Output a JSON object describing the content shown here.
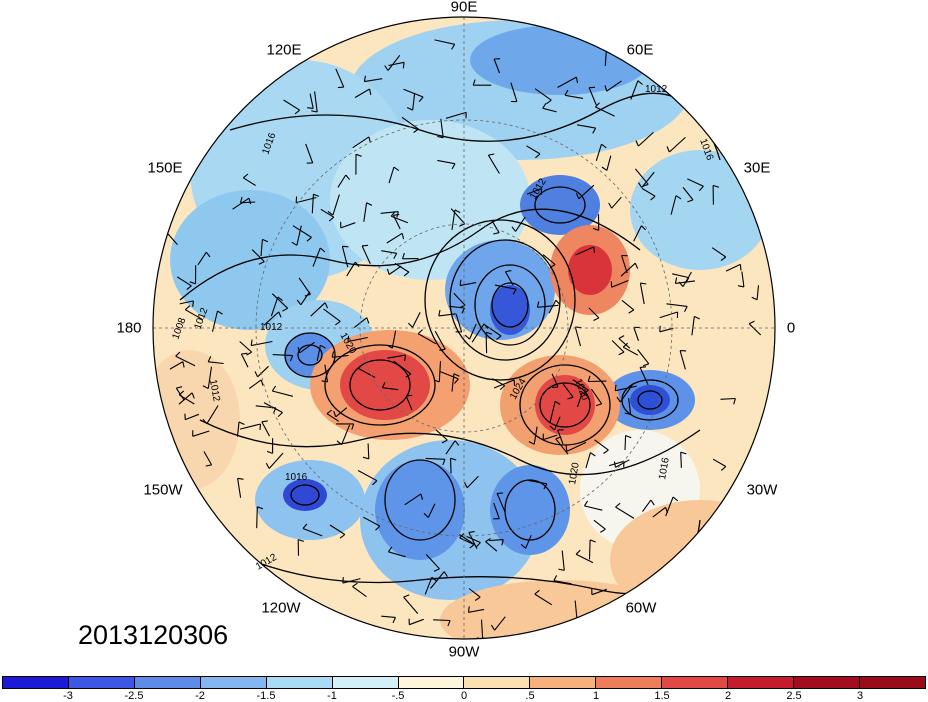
{
  "date_label": "2013120306",
  "longitude_labels": [
    "90E",
    "60E",
    "30E",
    "0",
    "30W",
    "60W",
    "90W",
    "120W",
    "150W",
    "180",
    "150E",
    "120E"
  ],
  "contour_labels": [
    "1012",
    "1016",
    "1012",
    "1016",
    "1012",
    "1008",
    "1012",
    "1012",
    "1016",
    "1012",
    "1020",
    "1020",
    "1024",
    "1020",
    "1016"
  ],
  "colorbar": {
    "ticks": [
      "-3",
      "-2.5",
      "-2",
      "-1.5",
      "-1",
      "-.5",
      "0",
      ".5",
      "1",
      "1.5",
      "2",
      "2.5",
      "3"
    ],
    "colors": [
      "#1c1ad6",
      "#3b57e3",
      "#5d8ce8",
      "#84b7ef",
      "#a9dcf4",
      "#d3f0f7",
      "#fdf6dc",
      "#fbe0b1",
      "#f6b17f",
      "#ee7d5b",
      "#e24946",
      "#c51b2c",
      "#a30d1f",
      "#9b0b1a"
    ]
  }
}
